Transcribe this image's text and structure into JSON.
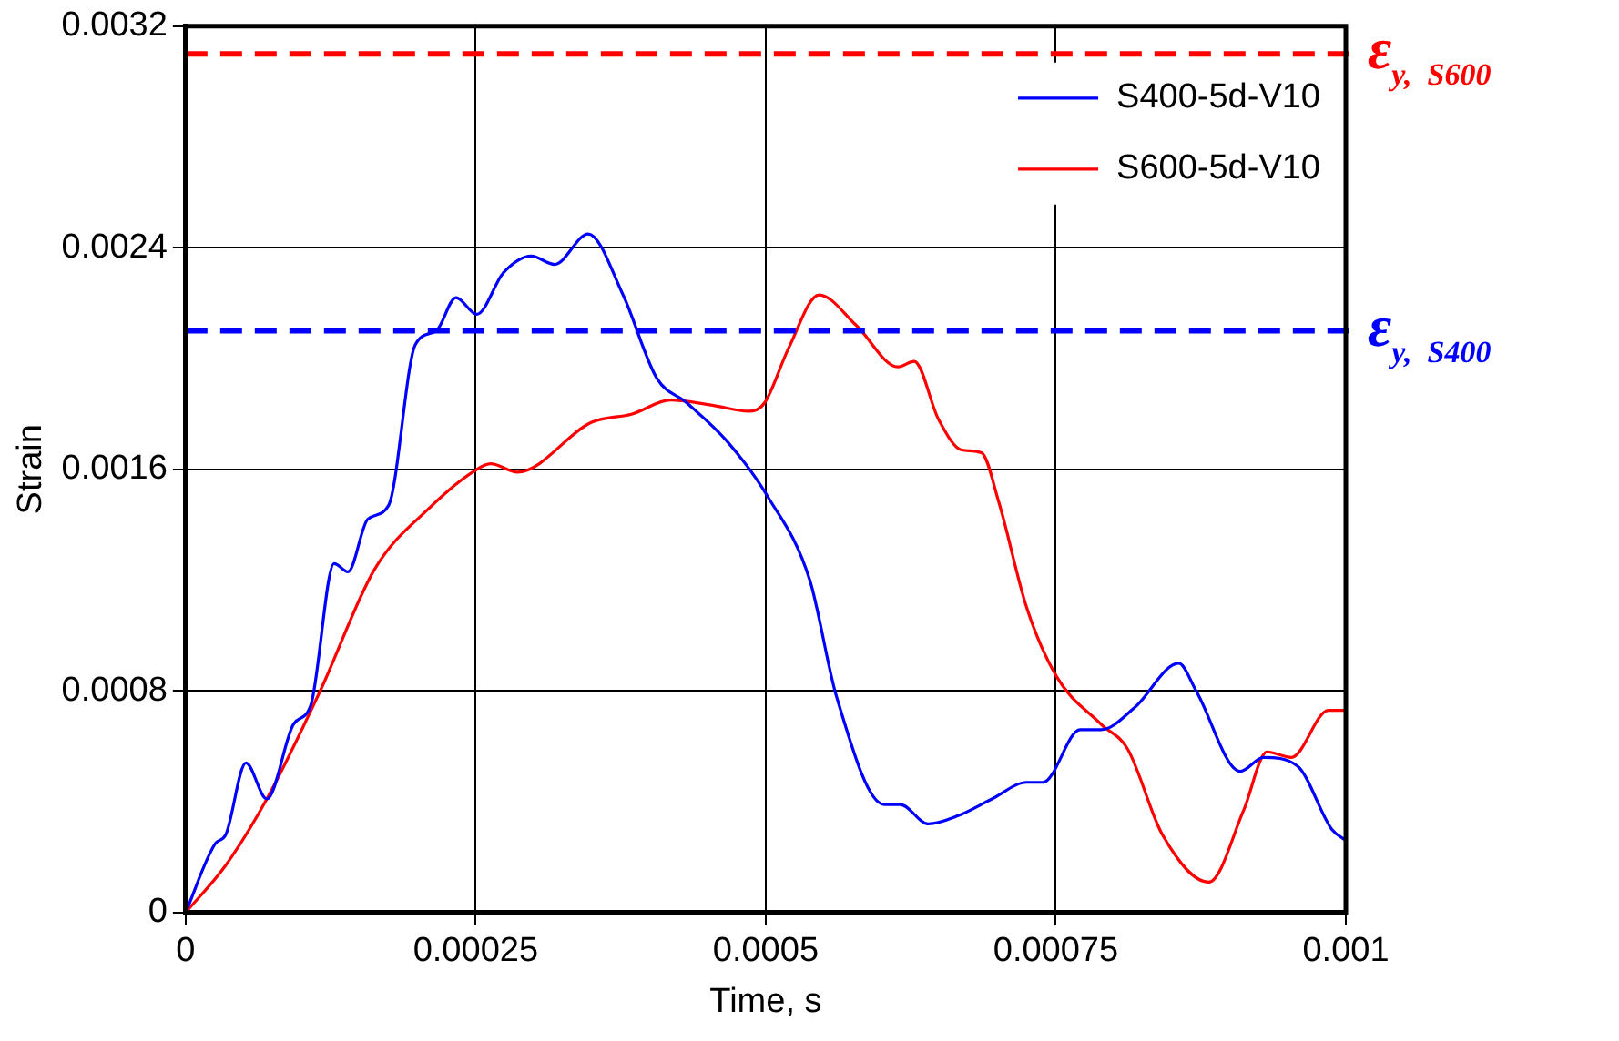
{
  "chart_data": {
    "type": "line",
    "xlabel": "Time, s",
    "ylabel": "Strain",
    "xlim": [
      0,
      0.001
    ],
    "xticks": [
      0,
      0.00025,
      0.0005,
      0.00075,
      0.001
    ],
    "ylim": [
      0,
      0.0032
    ],
    "yticks": [
      0,
      0.0008,
      0.0016,
      0.0024,
      0.0032
    ],
    "grid": true,
    "legend": "top right",
    "marker": "none",
    "line_style": "solid",
    "series": [
      {
        "name": "S400-5d-V10",
        "color": "#0000ff",
        "x": [
          0,
          2.58e-05,
          3.45e-05,
          5.2e-05,
          7e-05,
          9.3e-05,
          0.000108,
          0.000128,
          0.00014,
          0.000157,
          0.000175,
          0.000198,
          0.000216,
          0.000233,
          0.000251,
          0.000274,
          0.000298,
          0.000318,
          0.000347,
          0.000377,
          0.000406,
          0.000432,
          0.000467,
          0.000502,
          0.000538,
          0.000561,
          0.000602,
          0.000616,
          0.00064,
          0.000666,
          0.000695,
          0.000725,
          0.000739,
          0.000771,
          0.000789,
          0.000818,
          0.000856,
          0.000871,
          0.000909,
          0.000929,
          0.000958,
          0.000988,
          0.001
        ],
        "values": [
          0,
          0.00025,
          0.00028,
          0.00054,
          0.00041,
          0.00068,
          0.00075,
          0.00126,
          0.00123,
          0.00142,
          0.00147,
          0.00205,
          0.0021,
          0.00222,
          0.00216,
          0.00231,
          0.00237,
          0.00234,
          0.00245,
          0.00223,
          0.00193,
          0.00184,
          0.0017,
          0.0015,
          0.0012,
          0.00078,
          0.00039,
          0.00039,
          0.00032,
          0.00035,
          0.00041,
          0.00047,
          0.00047,
          0.00066,
          0.00066,
          0.00074,
          0.0009,
          0.0008,
          0.00051,
          0.00056,
          0.00053,
          0.0003,
          0.00026
        ]
      },
      {
        "name": "S600-5d-V10",
        "color": "#ff0000",
        "x": [
          0,
          3.45e-05,
          7e-05,
          0.000116,
          0.000163,
          0.00021,
          0.000251,
          0.000263,
          0.000286,
          0.00035,
          0.000385,
          0.000418,
          0.000456,
          0.000485,
          0.000499,
          0.00052,
          0.000546,
          0.000578,
          0.000614,
          0.000628,
          0.000649,
          0.000669,
          0.000686,
          0.000701,
          0.000725,
          0.000751,
          0.000789,
          0.000812,
          0.000842,
          0.000882,
          0.000912,
          0.000932,
          0.000953,
          0.000985,
          0.001
        ],
        "values": [
          0,
          0.00017,
          0.00041,
          0.0008,
          0.00124,
          0.00146,
          0.0016,
          0.00162,
          0.00159,
          0.00177,
          0.0018,
          0.00185,
          0.00183,
          0.00181,
          0.00184,
          0.00204,
          0.00223,
          0.00212,
          0.00197,
          0.00199,
          0.00178,
          0.00167,
          0.00166,
          0.00148,
          0.0011,
          0.00085,
          0.00068,
          0.00059,
          0.00028,
          0.00011,
          0.00037,
          0.00058,
          0.00056,
          0.00073,
          0.00073
        ]
      }
    ],
    "ref_lines": [
      {
        "axis": "y",
        "value": 0.0031,
        "label": "ε$_{y,  S600}$",
        "color": "#ff0000",
        "line_style": "dashed"
      },
      {
        "axis": "y",
        "value": 0.0021,
        "label": "ε$_{y,  S400}$",
        "color": "#0000ff",
        "line_style": "dashed"
      }
    ]
  }
}
